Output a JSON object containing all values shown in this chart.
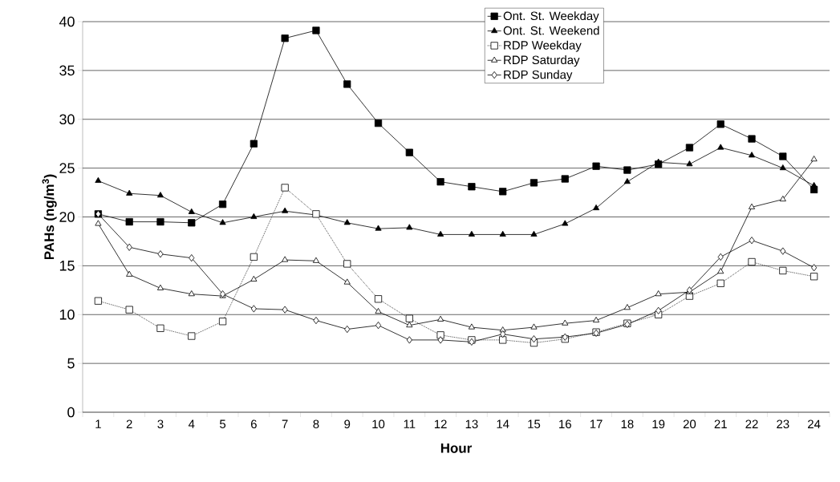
{
  "chart_data": {
    "type": "line",
    "xlabel": "Hour",
    "ylabel": "PAHs (ng/m$^{3}$)",
    "categories": [
      "1",
      "2",
      "3",
      "4",
      "5",
      "6",
      "7",
      "8",
      "9",
      "10",
      "11",
      "12",
      "13",
      "14",
      "15",
      "16",
      "17",
      "18",
      "19",
      "20",
      "21",
      "22",
      "23",
      "24"
    ],
    "ylim": [
      0,
      40
    ],
    "yticks": [
      0,
      5,
      10,
      15,
      20,
      25,
      30,
      35,
      40
    ],
    "grid": "y",
    "legend": "top",
    "series": [
      {
        "name": "Ont. St. Weekday",
        "color": "#000000",
        "marker": "square",
        "colors": [
          "#000000",
          "#000000",
          "#000000",
          "#000000",
          "#000000",
          "#000000",
          "#000000",
          "#000000",
          "#000000",
          "#000000",
          "#000000",
          "#000000",
          "#000000",
          "#000000",
          "#000000",
          "#000000",
          "#000000",
          "#000000",
          "#000000",
          "#000000",
          "#000000",
          "#000000",
          "#000000",
          "#000000"
        ],
        "line_style": "solid",
        "values": [
          20.3,
          19.5,
          19.5,
          19.4,
          21.3,
          27.5,
          38.3,
          39.1,
          33.6,
          29.6,
          26.6,
          23.6,
          23.1,
          22.6,
          23.5,
          23.9,
          25.2,
          24.8,
          25.4,
          27.1,
          29.5,
          28.0,
          26.2,
          22.8
        ]
      },
      {
        "name": "Ont. St. Weekend",
        "color": "#000000",
        "marker": "triangle",
        "colors": [
          "#000000",
          "#000000",
          "#000000",
          "#000000",
          "#000000",
          "#000000",
          "#000000",
          "#000000",
          "#000000",
          "#000000",
          "#000000",
          "#000000",
          "#000000",
          "#000000",
          "#000000",
          "#000000",
          "#000000",
          "#000000",
          "#000000",
          "#000000",
          "#000000",
          "#000000",
          "#000000",
          "#000000"
        ],
        "line_style": "solid",
        "values": [
          23.7,
          22.4,
          22.2,
          20.5,
          19.4,
          20.0,
          20.6,
          20.2,
          19.4,
          18.8,
          18.9,
          18.2,
          18.2,
          18.2,
          18.2,
          19.3,
          20.9,
          23.6,
          25.6,
          25.4,
          27.1,
          26.3,
          25.0,
          23.2
        ]
      },
      {
        "name": "RDP Weekday",
        "color": "#000000",
        "marker": "square",
        "colors": [
          "#ffffff",
          "#ffffff",
          "#ffffff",
          "#ffffff",
          "#ffffff",
          "#ffffff",
          "#ffffff",
          "#ffffff",
          "#ffffff",
          "#ffffff",
          "#ffffff",
          "#ffffff",
          "#ffffff",
          "#ffffff",
          "#ffffff",
          "#ffffff",
          "#ffffff",
          "#ffffff",
          "#ffffff",
          "#ffffff",
          "#ffffff",
          "#ffffff",
          "#ffffff",
          "#ffffff"
        ],
        "line_style": "dotted",
        "values": [
          11.4,
          10.5,
          8.6,
          7.8,
          9.3,
          15.9,
          23.0,
          20.3,
          15.2,
          11.6,
          9.6,
          7.9,
          7.4,
          7.4,
          7.1,
          7.5,
          8.2,
          9.1,
          10.0,
          11.9,
          13.2,
          15.4,
          14.5,
          13.9
        ]
      },
      {
        "name": "RDP Saturday",
        "color": "#000000",
        "marker": "triangle",
        "colors": [
          "#ffffff",
          "#ffffff",
          "#ffffff",
          "#ffffff",
          "#ffffff",
          "#ffffff",
          "#ffffff",
          "#ffffff",
          "#ffffff",
          "#ffffff",
          "#ffffff",
          "#ffffff",
          "#ffffff",
          "#ffffff",
          "#ffffff",
          "#ffffff",
          "#ffffff",
          "#ffffff",
          "#ffffff",
          "#ffffff",
          "#ffffff",
          "#ffffff",
          "#ffffff",
          "#ffffff"
        ],
        "line_style": "solid",
        "values": [
          19.3,
          14.1,
          12.7,
          12.1,
          11.9,
          13.6,
          15.6,
          15.5,
          13.3,
          10.3,
          8.9,
          9.5,
          8.7,
          8.4,
          8.7,
          9.1,
          9.4,
          10.7,
          12.1,
          12.3,
          14.4,
          21.0,
          21.8,
          25.9
        ]
      },
      {
        "name": "RDP Sunday",
        "color": "#000000",
        "marker": "diamond",
        "colors": [
          "#ffffff",
          "#ffffff",
          "#ffffff",
          "#ffffff",
          "#ffffff",
          "#ffffff",
          "#ffffff",
          "#ffffff",
          "#ffffff",
          "#ffffff",
          "#ffffff",
          "#ffffff",
          "#ffffff",
          "#ffffff",
          "#ffffff",
          "#ffffff",
          "#ffffff",
          "#ffffff",
          "#ffffff",
          "#ffffff",
          "#ffffff",
          "#ffffff",
          "#ffffff",
          "#ffffff"
        ],
        "line_style": "solid",
        "values": [
          20.3,
          16.9,
          16.2,
          15.8,
          12.1,
          10.6,
          10.5,
          9.4,
          8.5,
          8.9,
          7.4,
          7.4,
          7.2,
          8.0,
          7.5,
          7.7,
          8.1,
          9.0,
          10.4,
          12.5,
          15.9,
          17.6,
          16.5,
          14.8
        ]
      }
    ]
  }
}
